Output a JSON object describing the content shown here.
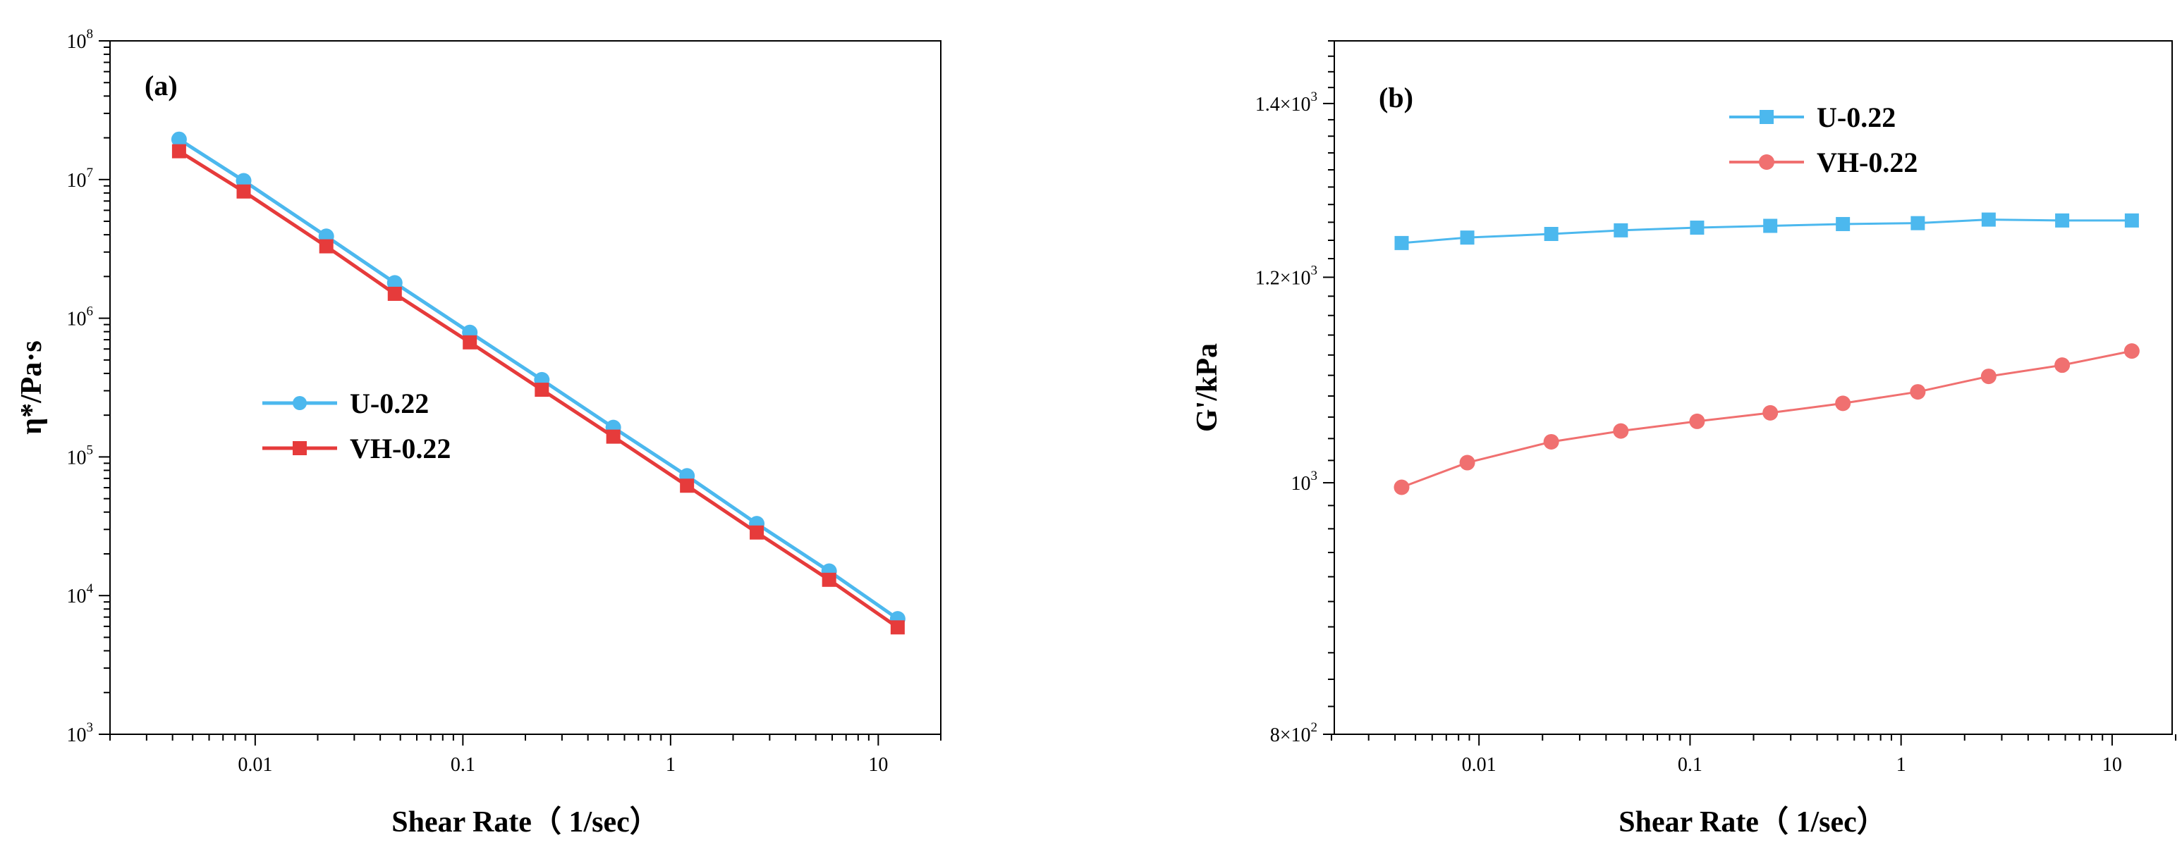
{
  "chart_data": [
    {
      "panel_label": "(a)",
      "type": "line",
      "xscale": "log",
      "yscale": "log",
      "xlim": [
        0.002,
        20
      ],
      "ylim": [
        1000,
        100000000
      ],
      "xlabel": "Shear Rate（ 1/sec）",
      "ylabel": "η*/Pa·s",
      "xticks": [
        0.01,
        0.1,
        1,
        10
      ],
      "xtick_labels": [
        "0.01",
        "0.1",
        "1",
        "10"
      ],
      "yticks": [
        1000,
        10000,
        100000,
        1000000,
        10000000,
        100000000
      ],
      "ytick_base": "10",
      "ytick_exponents": [
        "3",
        "4",
        "5",
        "6",
        "7",
        "8"
      ],
      "legend_position": "center-left",
      "x": [
        0.0043,
        0.0088,
        0.022,
        0.047,
        0.108,
        0.24,
        0.53,
        1.2,
        2.6,
        5.8,
        12.4
      ],
      "series": [
        {
          "name": "U-0.22",
          "color": "#4cb8ee",
          "marker": "circle",
          "values": [
            19500000,
            9800000,
            3900000,
            1800000,
            790000,
            360000,
            163000,
            73000,
            33000,
            15000,
            6800
          ]
        },
        {
          "name": "VH-0.22",
          "color": "#e63b3b",
          "marker": "square",
          "values": [
            16000000,
            8200000,
            3300000,
            1500000,
            670000,
            305000,
            140000,
            62000,
            28500,
            13000,
            5900
          ]
        }
      ]
    },
    {
      "panel_label": "(b)",
      "type": "line",
      "xscale": "log",
      "yscale": "log",
      "xlim": [
        0.002,
        20
      ],
      "ylim": [
        800,
        1480
      ],
      "xlabel": "Shear Rate（ 1/sec）",
      "ylabel": "G'/kPa",
      "xticks": [
        0.01,
        0.1,
        1,
        10
      ],
      "xtick_labels": [
        "0.01",
        "0.1",
        "1",
        "10"
      ],
      "yticks": [
        800,
        1000,
        1200,
        1400
      ],
      "ytick_labels": [
        {
          "mantissa": "8×10",
          "exp": "2"
        },
        {
          "mantissa": "10",
          "exp": "3"
        },
        {
          "mantissa": "1.2×10",
          "exp": "3"
        },
        {
          "mantissa": "1.4×10",
          "exp": "3"
        }
      ],
      "legend_position": "top-center",
      "x": [
        0.0043,
        0.0088,
        0.022,
        0.047,
        0.108,
        0.24,
        0.53,
        1.2,
        2.6,
        5.8,
        12.4
      ],
      "series": [
        {
          "name": "U-0.22",
          "color": "#4cb8ee",
          "marker": "square",
          "values": [
            1237,
            1243,
            1247,
            1251,
            1254,
            1256,
            1258,
            1259,
            1263,
            1262,
            1262
          ]
        },
        {
          "name": "VH-0.22",
          "color": "#f07070",
          "marker": "circle",
          "values": [
            996,
            1018,
            1037,
            1047,
            1056,
            1064,
            1073,
            1084,
            1099,
            1110,
            1124
          ]
        }
      ]
    }
  ]
}
